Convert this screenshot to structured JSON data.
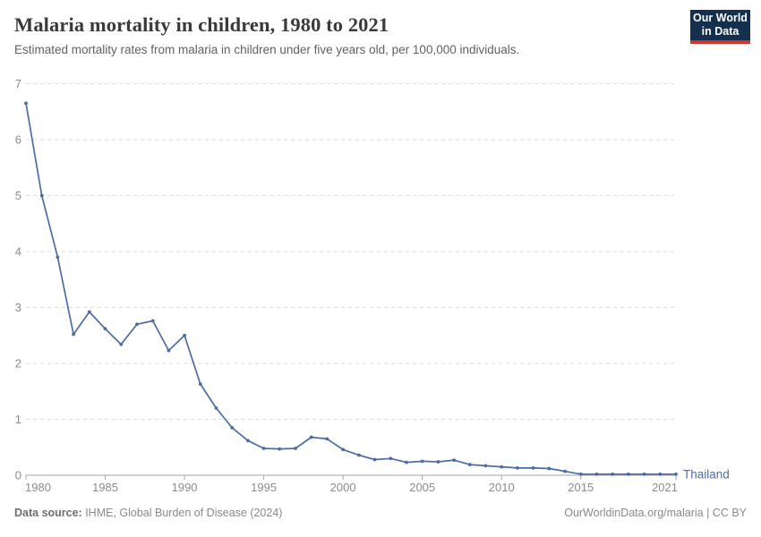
{
  "logo": {
    "line1": "Our World",
    "line2": "in Data",
    "bg_color": "#15304F",
    "bar_color": "#D0342C"
  },
  "footer": {
    "source_label": "Data source:",
    "source_value": " IHME, Global Burden of Disease (2024)",
    "credit": "OurWorldinData.org/malaria | CC BY"
  },
  "chart_data": {
    "type": "line",
    "title": "Malaria mortality in children, 1980 to 2021",
    "subtitle": "Estimated mortality rates from malaria in children under five years old, per 100,000 individuals.",
    "x": [
      1980,
      1981,
      1982,
      1983,
      1984,
      1985,
      1986,
      1987,
      1988,
      1989,
      1990,
      1991,
      1992,
      1993,
      1994,
      1995,
      1996,
      1997,
      1998,
      1999,
      2000,
      2001,
      2002,
      2003,
      2004,
      2005,
      2006,
      2007,
      2008,
      2009,
      2010,
      2011,
      2012,
      2013,
      2014,
      2015,
      2016,
      2017,
      2018,
      2019,
      2020,
      2021
    ],
    "series": [
      {
        "name": "Thailand",
        "color": "#4C6CA4",
        "values": [
          6.65,
          5.0,
          3.9,
          2.52,
          2.92,
          2.62,
          2.34,
          2.7,
          2.76,
          2.23,
          2.5,
          1.63,
          1.2,
          0.85,
          0.62,
          0.48,
          0.47,
          0.48,
          0.68,
          0.65,
          0.46,
          0.36,
          0.28,
          0.3,
          0.23,
          0.25,
          0.24,
          0.27,
          0.19,
          0.17,
          0.15,
          0.13,
          0.13,
          0.12,
          0.07,
          0.02,
          0.02,
          0.02,
          0.02,
          0.02,
          0.02,
          0.02
        ]
      }
    ],
    "xlabel": "",
    "ylabel": "",
    "ylim": [
      0,
      7
    ],
    "yticks": [
      0,
      1,
      2,
      3,
      4,
      5,
      6,
      7
    ],
    "xticks": [
      1980,
      1985,
      1990,
      1995,
      2000,
      2005,
      2010,
      2015,
      2021
    ],
    "grid": "horizontal-dashed",
    "legend": "entity-label-at-line-end",
    "colors": {
      "grid": "#DCDCDC",
      "axis": "#A3A3A3",
      "tick_label": "#8C8C8C"
    }
  }
}
